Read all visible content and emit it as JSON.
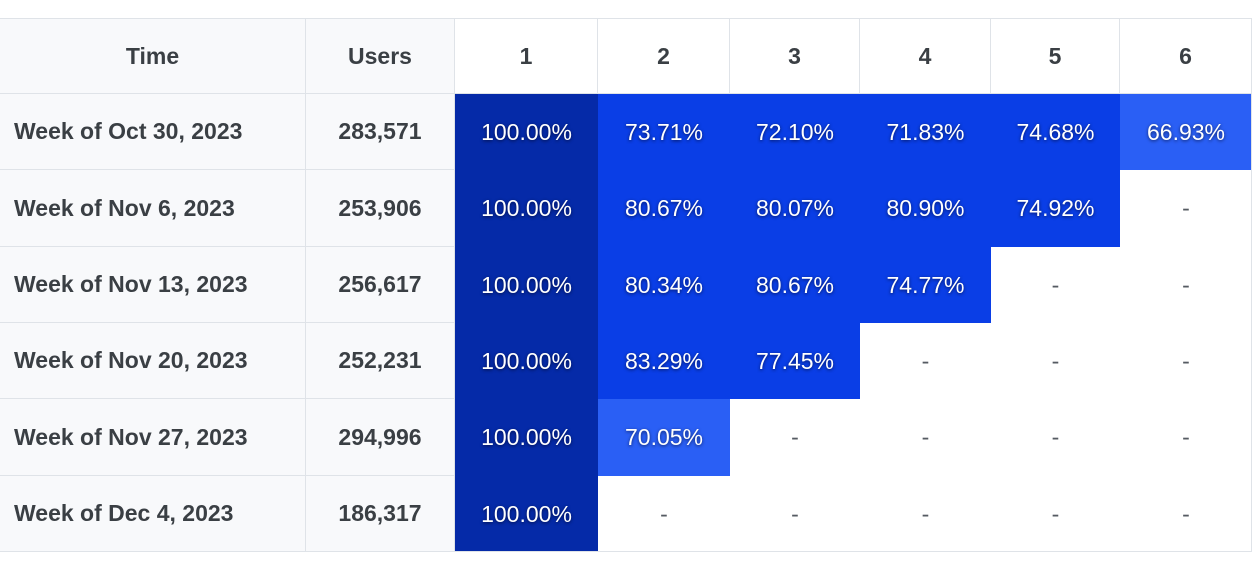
{
  "colors": {
    "first_column": "#052aa8",
    "high": "#0a3ee6",
    "medium": "#2a5ff5",
    "label_bg": "#f8f9fb",
    "grid_line": "#dfe3e8"
  },
  "chart_data": {
    "type": "table",
    "title": "",
    "columns": [
      "Time",
      "Users",
      "1",
      "2",
      "3",
      "4",
      "5",
      "6"
    ],
    "rows": [
      {
        "time": "Week of Oct 30, 2023",
        "users": "283,571",
        "retention": [
          "100.00%",
          "73.71%",
          "72.10%",
          "71.83%",
          "74.68%",
          "66.93%"
        ],
        "values": [
          100.0,
          73.71,
          72.1,
          71.83,
          74.68,
          66.93
        ]
      },
      {
        "time": "Week of Nov 6, 2023",
        "users": "253,906",
        "retention": [
          "100.00%",
          "80.67%",
          "80.07%",
          "80.90%",
          "74.92%",
          "-"
        ],
        "values": [
          100.0,
          80.67,
          80.07,
          80.9,
          74.92,
          null
        ]
      },
      {
        "time": "Week of Nov 13, 2023",
        "users": "256,617",
        "retention": [
          "100.00%",
          "80.34%",
          "80.67%",
          "74.77%",
          "-",
          "-"
        ],
        "values": [
          100.0,
          80.34,
          80.67,
          74.77,
          null,
          null
        ]
      },
      {
        "time": "Week of Nov 20, 2023",
        "users": "252,231",
        "retention": [
          "100.00%",
          "83.29%",
          "77.45%",
          "-",
          "-",
          "-"
        ],
        "values": [
          100.0,
          83.29,
          77.45,
          null,
          null,
          null
        ]
      },
      {
        "time": "Week of Nov 27, 2023",
        "users": "294,996",
        "retention": [
          "100.00%",
          "70.05%",
          "-",
          "-",
          "-",
          "-"
        ],
        "values": [
          100.0,
          70.05,
          null,
          null,
          null,
          null
        ]
      },
      {
        "time": "Week of Dec 4, 2023",
        "users": "186,317",
        "retention": [
          "100.00%",
          "-",
          "-",
          "-",
          "-",
          "-"
        ],
        "values": [
          100.0,
          null,
          null,
          null,
          null,
          null
        ]
      }
    ]
  }
}
